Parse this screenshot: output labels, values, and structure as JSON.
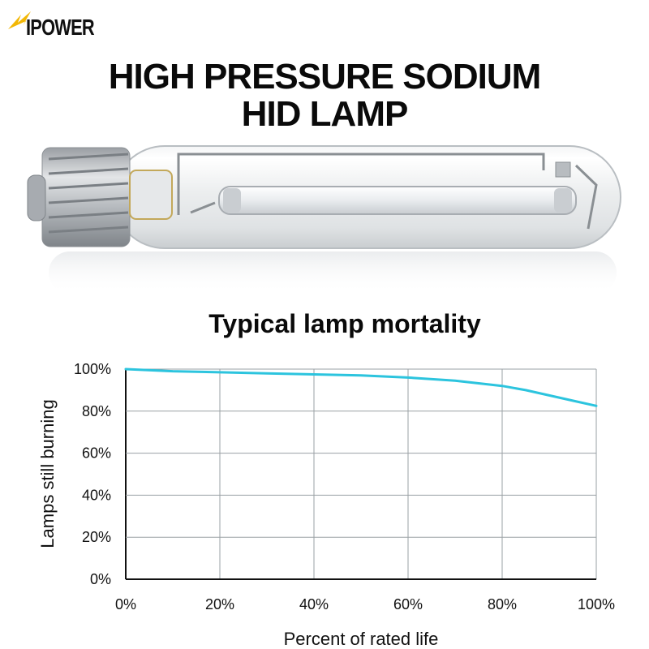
{
  "brand": {
    "name": "IPOWER",
    "accent": "#f2b705"
  },
  "headline": {
    "line1": "HIGH PRESSURE SODIUM",
    "line2": "HID LAMP"
  },
  "image": {
    "subject": "lamp-icon"
  },
  "chart_data": {
    "type": "line",
    "title": "Typical lamp mortality",
    "xlabel": "Percent of rated life",
    "ylabel": "Lamps still burning",
    "x_ticks": [
      "0%",
      "20%",
      "40%",
      "60%",
      "80%",
      "100%"
    ],
    "y_ticks": [
      "100%",
      "80%",
      "60%",
      "40%",
      "20%",
      "0%"
    ],
    "xlim": [
      0,
      100
    ],
    "ylim": [
      0,
      100
    ],
    "grid": true,
    "series": [
      {
        "color": "#2cc4de",
        "x": [
          0,
          10,
          20,
          30,
          40,
          50,
          60,
          70,
          80,
          85,
          90,
          95,
          100
        ],
        "y": [
          100,
          99,
          98.5,
          98,
          97.5,
          97,
          96,
          94.5,
          92,
          90,
          87.5,
          85,
          82.5
        ]
      }
    ]
  }
}
